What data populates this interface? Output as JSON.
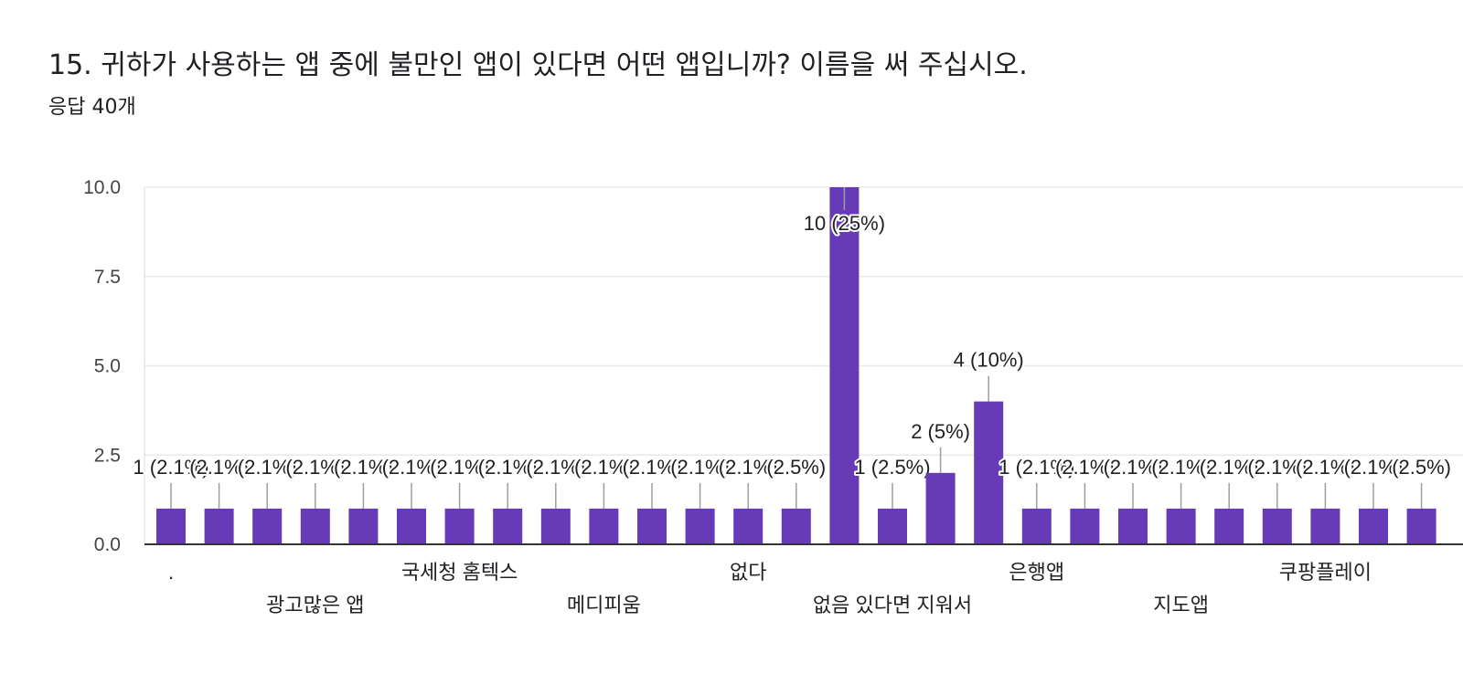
{
  "question": {
    "title": "15. 귀하가 사용하는 앱 중에 불만인 앱이 있다면 어떤 앱입니까? 이름을 써 주십시오.",
    "response_count": "응답 40개"
  },
  "colors": {
    "bar": "#673ab7",
    "grid": "#e8e8e8",
    "axis": "#333333",
    "text": "#202124",
    "leader": "#9e9e9e"
  },
  "chart_data": {
    "type": "bar",
    "ylim": [
      0,
      10
    ],
    "yticks": [
      "0.0",
      "2.5",
      "5.0",
      "7.5",
      "10.0"
    ],
    "ytick_values": [
      0,
      2.5,
      5,
      7.5,
      10
    ],
    "grid": true,
    "values": [
      1,
      1,
      1,
      1,
      1,
      1,
      1,
      1,
      1,
      1,
      1,
      1,
      1,
      1,
      10,
      1,
      2,
      4,
      1,
      1,
      1,
      1,
      1,
      1,
      1,
      1,
      1
    ],
    "data_labels": [
      "1 (2.1%)",
      "(2.1%)",
      "(2.1%)",
      "(2.1%)",
      "(2.1%)",
      "(2.1%)",
      "(2.1%)",
      "(2.1%)",
      "(2.1%)",
      "(2.1%)",
      "(2.1%)",
      "(2.1%)",
      "(2.1%)",
      "(2.5%)",
      "10 (25%)",
      "1 (2.5%)",
      "2 (5%)",
      "4 (10%)",
      "1 (2.1%)",
      "(2.1%)",
      "(2.1%)",
      "(2.1%)",
      "(2.1%)",
      "(2.1%)",
      "(2.1%)",
      "(2.1%)",
      "(2.5%)"
    ],
    "category_labels": [
      {
        "index": 0,
        "text": ".",
        "row": 0
      },
      {
        "index": 3,
        "text": "광고많은 앱",
        "row": 1
      },
      {
        "index": 6,
        "text": "국세청 홈텍스",
        "row": 0
      },
      {
        "index": 9,
        "text": "메디피움",
        "row": 1
      },
      {
        "index": 12,
        "text": "없다",
        "row": 0
      },
      {
        "index": 15,
        "text": "없음 있다면 지워서",
        "row": 1
      },
      {
        "index": 18,
        "text": "은행앱",
        "row": 0
      },
      {
        "index": 21,
        "text": "지도앱",
        "row": 1
      },
      {
        "index": 24,
        "text": "쿠팡플레이",
        "row": 0
      }
    ]
  }
}
